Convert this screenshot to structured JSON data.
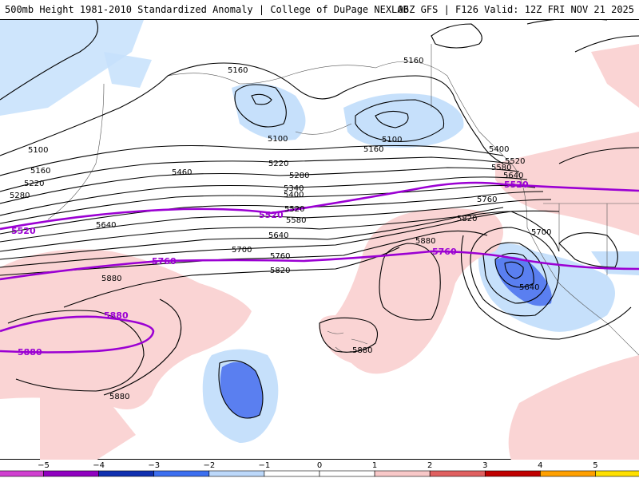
{
  "header": {
    "left_title": "500mb Height 1981-2010 Standardized Anomaly | College of DuPage NEXLAB",
    "right_title": "06Z GFS | F126 Valid: 12Z FRI NOV 21 2025"
  },
  "map": {
    "contour_labels": {
      "c5160a": "5160",
      "c5160b": "5160",
      "c5100a": "5100",
      "c5100b": "5100",
      "c5160c": "5160",
      "c5100c": "5100",
      "c5160d": "5160",
      "c5220a": "5220",
      "c5280a": "5280",
      "c5460": "5460",
      "c5220b": "5220",
      "c5280b": "5280",
      "c5340": "5340",
      "c5400a": "5400",
      "c5400b": "5400",
      "c5520a": "5520",
      "c5580": "5580",
      "c5580b": "5580",
      "c5640a": "5640",
      "c5640b": "5640",
      "c5640c": "5640",
      "c5640d": "5640",
      "c5700a": "5700",
      "c5700b": "5700",
      "c5760a": "5760",
      "c5760b": "5760",
      "c5820a": "5820",
      "c5820b": "5820",
      "c5880a": "5880",
      "c5880b": "5880",
      "c5880c": "5880",
      "c5880d": "5880",
      "c5520b": "5520"
    },
    "highlight_labels": {
      "p5520a": "5520",
      "p5520b": "5520",
      "p5520c": "5520",
      "p5760a": "5760",
      "p5760b": "5760",
      "p5880a": "5880",
      "p5880b": "5880"
    },
    "colors": {
      "highlight": "#9b00d3",
      "neg1": "#c6e0fb",
      "neg2": "#5a7ff0",
      "pos1": "#fad4d4"
    }
  },
  "colorbar": {
    "ticks": [
      "−5",
      "−4",
      "−3",
      "−2",
      "−1",
      "0",
      "1",
      "2",
      "3",
      "4",
      "5"
    ],
    "colors": [
      "#d040d0",
      "#9000c0",
      "#1030b0",
      "#3c6ff0",
      "#bcd8fa",
      "#ffffff",
      "#ffffff",
      "#f8c8c8",
      "#e06060",
      "#c00000",
      "#ffa000",
      "#ffe000"
    ]
  }
}
